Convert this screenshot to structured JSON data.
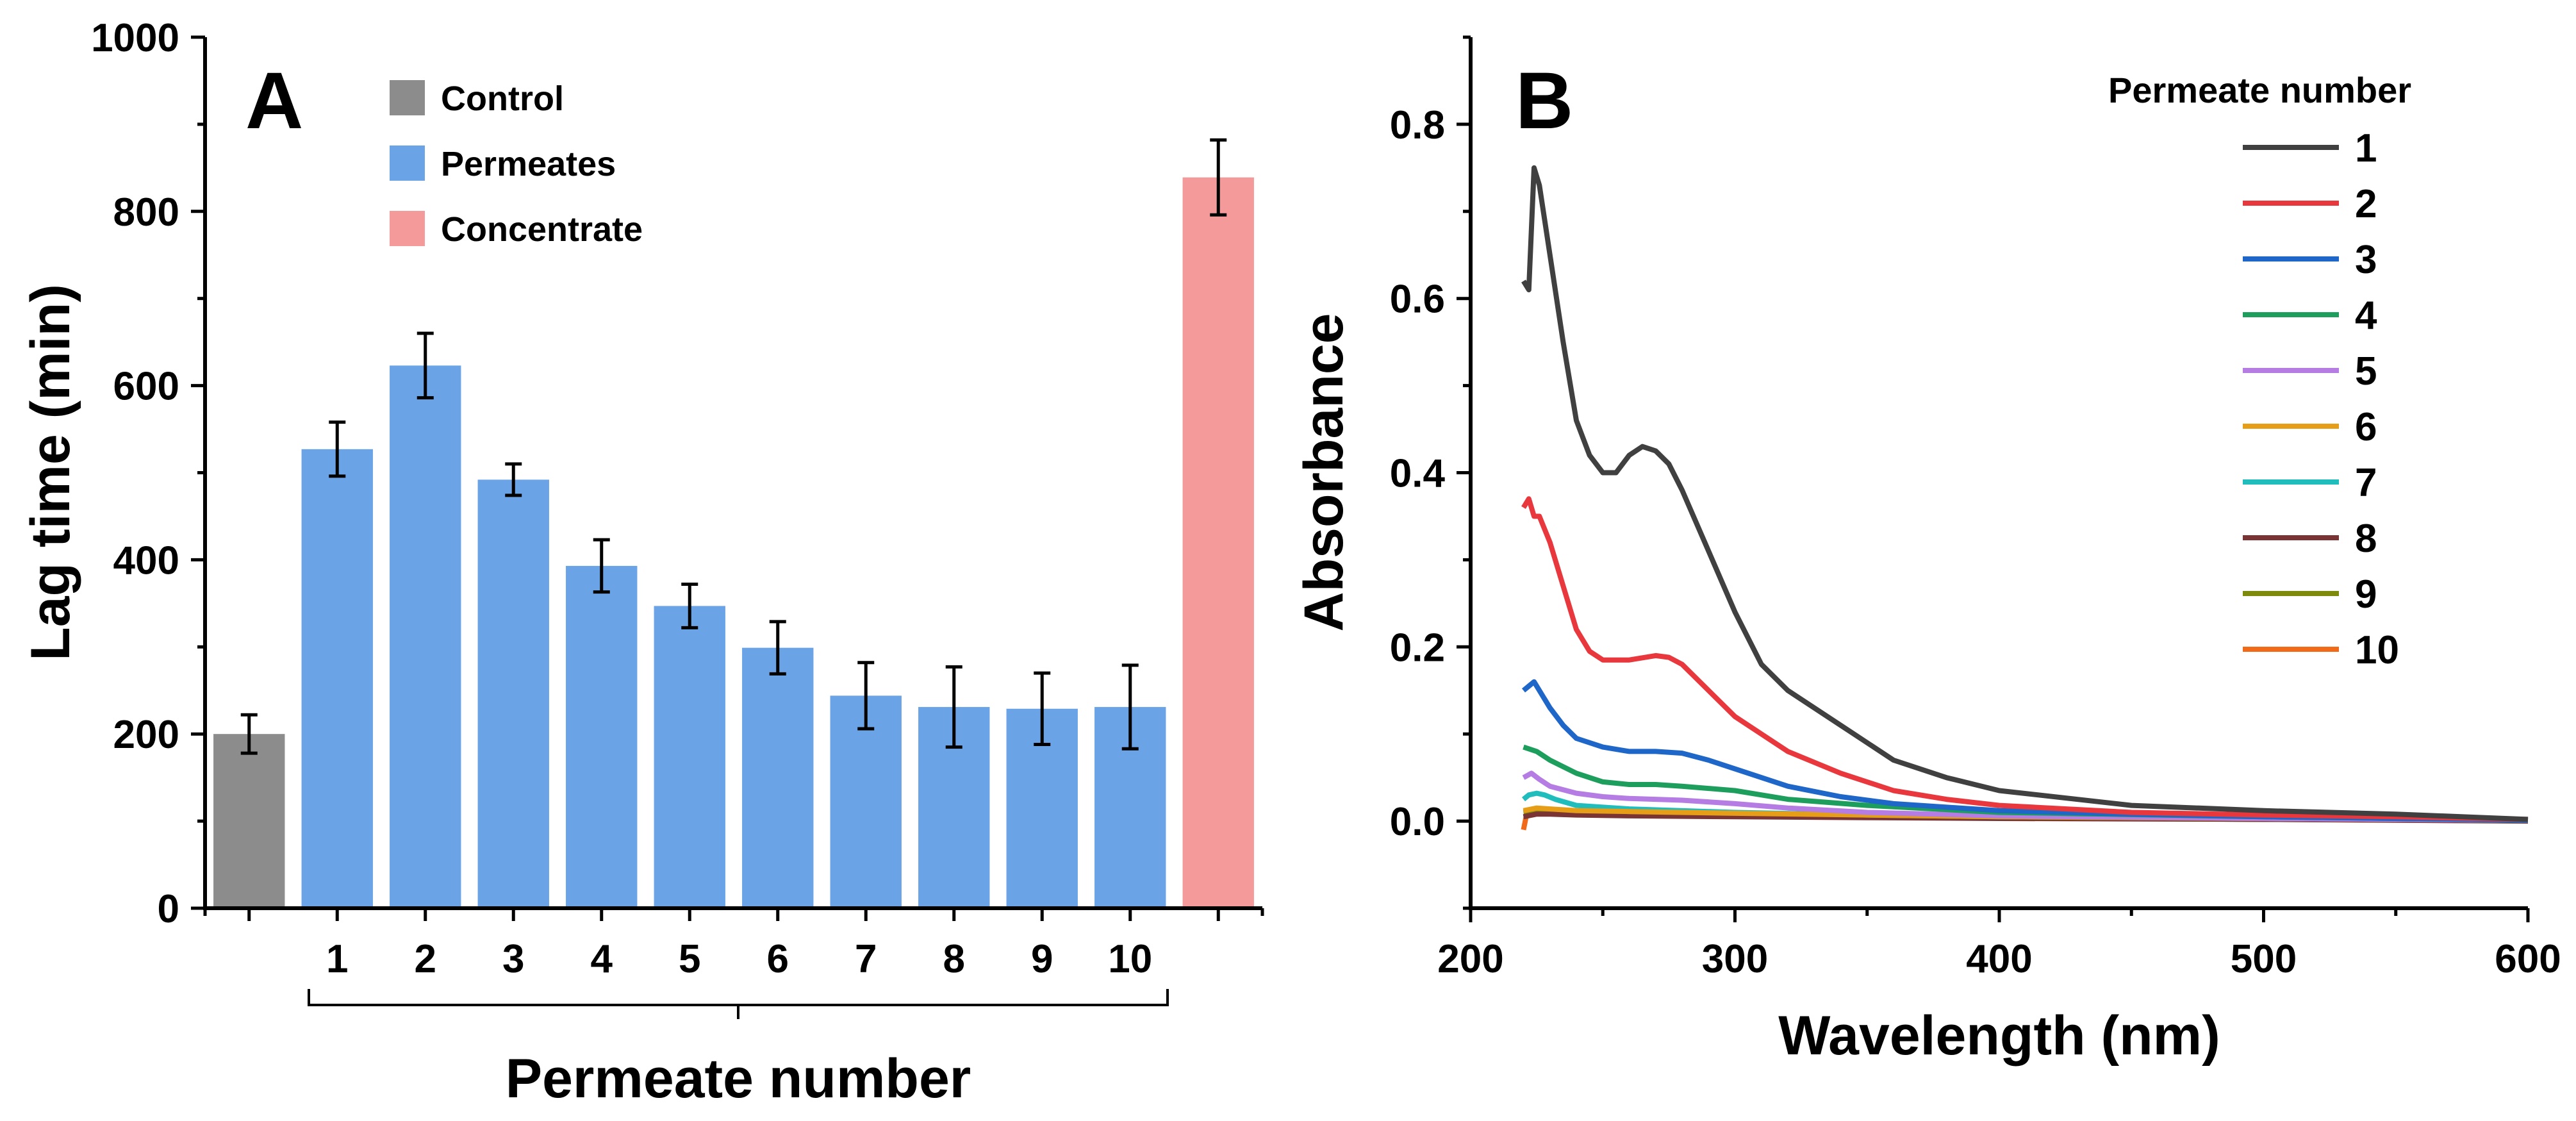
{
  "colors": {
    "control": "#8c8c8c",
    "permeates": "#6aa3e6",
    "concentrate": "#f59a9a"
  },
  "chart_data": [
    {
      "panel": "A",
      "type": "bar",
      "ylabel": "Lag time (min)",
      "xlabel": "Permeate number",
      "ylim": [
        0,
        1000
      ],
      "yticks": [
        0,
        200,
        400,
        600,
        800,
        1000
      ],
      "legend": {
        "position": "top-left",
        "entries": [
          {
            "name": "Control",
            "color": "#8c8c8c"
          },
          {
            "name": "Permeates",
            "color": "#6aa3e6"
          },
          {
            "name": "Concentrate",
            "color": "#f59a9a"
          }
        ]
      },
      "bars": [
        {
          "label": "",
          "group": "Control",
          "value": 200,
          "error": 22
        },
        {
          "label": "1",
          "group": "Permeates",
          "value": 527,
          "error": 31
        },
        {
          "label": "2",
          "group": "Permeates",
          "value": 623,
          "error": 37
        },
        {
          "label": "3",
          "group": "Permeates",
          "value": 492,
          "error": 18
        },
        {
          "label": "4",
          "group": "Permeates",
          "value": 393,
          "error": 30
        },
        {
          "label": "5",
          "group": "Permeates",
          "value": 347,
          "error": 25
        },
        {
          "label": "6",
          "group": "Permeates",
          "value": 299,
          "error": 30
        },
        {
          "label": "7",
          "group": "Permeates",
          "value": 244,
          "error": 38
        },
        {
          "label": "8",
          "group": "Permeates",
          "value": 231,
          "error": 46
        },
        {
          "label": "9",
          "group": "Permeates",
          "value": 229,
          "error": 41
        },
        {
          "label": "10",
          "group": "Permeates",
          "value": 231,
          "error": 48
        },
        {
          "label": "",
          "group": "Concentrate",
          "value": 839,
          "error": 43
        }
      ]
    },
    {
      "panel": "B",
      "type": "line",
      "xlabel": "Wavelength (nm)",
      "ylabel": "Absorbance",
      "xlim": [
        200,
        600
      ],
      "ylim": [
        -0.1,
        0.9
      ],
      "xticks": [
        200,
        300,
        400,
        500,
        600
      ],
      "yticks": [
        0.0,
        0.2,
        0.4,
        0.6,
        0.8
      ],
      "ytick_labels": [
        "0.0",
        "0.2",
        "0.4",
        "0.6",
        "0.8"
      ],
      "legend": {
        "title": "Permeate number",
        "position": "top-right"
      },
      "series": [
        {
          "name": "1",
          "color": "#404040",
          "x": [
            220,
            222,
            224,
            226,
            230,
            235,
            240,
            245,
            250,
            255,
            260,
            265,
            270,
            275,
            280,
            290,
            300,
            310,
            320,
            340,
            360,
            380,
            400,
            450,
            500,
            550,
            600
          ],
          "y": [
            0.62,
            0.61,
            0.75,
            0.73,
            0.65,
            0.55,
            0.46,
            0.42,
            0.4,
            0.4,
            0.42,
            0.43,
            0.425,
            0.41,
            0.38,
            0.31,
            0.24,
            0.18,
            0.15,
            0.11,
            0.07,
            0.05,
            0.035,
            0.018,
            0.012,
            0.008,
            0.002
          ]
        },
        {
          "name": "2",
          "color": "#e8383d",
          "x": [
            220,
            222,
            224,
            226,
            230,
            235,
            240,
            245,
            250,
            260,
            270,
            275,
            280,
            290,
            300,
            320,
            340,
            360,
            380,
            400,
            450,
            500,
            550,
            600
          ],
          "y": [
            0.36,
            0.37,
            0.35,
            0.35,
            0.32,
            0.27,
            0.22,
            0.195,
            0.185,
            0.185,
            0.19,
            0.188,
            0.18,
            0.15,
            0.12,
            0.08,
            0.055,
            0.035,
            0.025,
            0.018,
            0.01,
            0.007,
            0.005,
            0.002
          ]
        },
        {
          "name": "3",
          "color": "#1f66c9",
          "x": [
            220,
            222,
            224,
            226,
            230,
            235,
            240,
            250,
            260,
            270,
            280,
            290,
            300,
            320,
            340,
            360,
            400,
            450,
            500,
            600
          ],
          "y": [
            0.15,
            0.155,
            0.16,
            0.15,
            0.13,
            0.11,
            0.095,
            0.085,
            0.08,
            0.08,
            0.078,
            0.07,
            0.06,
            0.04,
            0.028,
            0.02,
            0.012,
            0.008,
            0.005,
            0.001
          ]
        },
        {
          "name": "4",
          "color": "#1e9e5c",
          "x": [
            220,
            225,
            230,
            240,
            250,
            260,
            270,
            280,
            300,
            320,
            350,
            400,
            500,
            600
          ],
          "y": [
            0.085,
            0.08,
            0.07,
            0.055,
            0.045,
            0.042,
            0.042,
            0.04,
            0.035,
            0.025,
            0.018,
            0.01,
            0.005,
            0.001
          ]
        },
        {
          "name": "5",
          "color": "#b57ce3",
          "x": [
            220,
            223,
            226,
            230,
            240,
            250,
            260,
            270,
            280,
            300,
            320,
            350,
            400,
            500,
            600
          ],
          "y": [
            0.05,
            0.055,
            0.048,
            0.04,
            0.032,
            0.028,
            0.026,
            0.025,
            0.024,
            0.02,
            0.015,
            0.01,
            0.006,
            0.003,
            0.001
          ]
        },
        {
          "name": "6",
          "color": "#e69d17",
          "x": [
            220,
            225,
            230,
            240,
            260,
            300,
            350,
            400,
            500,
            600
          ],
          "y": [
            0.012,
            0.015,
            0.014,
            0.012,
            0.011,
            0.009,
            0.007,
            0.005,
            0.003,
            0.001
          ]
        },
        {
          "name": "7",
          "color": "#21bdbd",
          "x": [
            220,
            222,
            225,
            228,
            232,
            240,
            260,
            300,
            350,
            400,
            500,
            600
          ],
          "y": [
            0.025,
            0.03,
            0.032,
            0.03,
            0.025,
            0.018,
            0.014,
            0.01,
            0.007,
            0.005,
            0.003,
            0.001
          ]
        },
        {
          "name": "8",
          "color": "#7a3434",
          "x": [
            220,
            225,
            230,
            240,
            260,
            300,
            350,
            400,
            500,
            600
          ],
          "y": [
            0.005,
            0.008,
            0.008,
            0.007,
            0.006,
            0.005,
            0.004,
            0.003,
            0.002,
            0.0
          ]
        },
        {
          "name": "9",
          "color": "#7d8a0c",
          "x": [
            220,
            225,
            230,
            240,
            260,
            300,
            350,
            400,
            500,
            600
          ],
          "y": [
            0.01,
            0.012,
            0.011,
            0.01,
            0.009,
            0.007,
            0.005,
            0.004,
            0.002,
            0.001
          ]
        },
        {
          "name": "10",
          "color": "#f06a1a",
          "x": [
            220,
            221,
            223,
            226,
            230,
            240,
            260,
            300,
            350,
            400,
            500,
            600
          ],
          "y": [
            -0.01,
            0.005,
            0.012,
            0.013,
            0.012,
            0.011,
            0.01,
            0.008,
            0.006,
            0.004,
            0.002,
            0.001
          ]
        }
      ]
    }
  ]
}
